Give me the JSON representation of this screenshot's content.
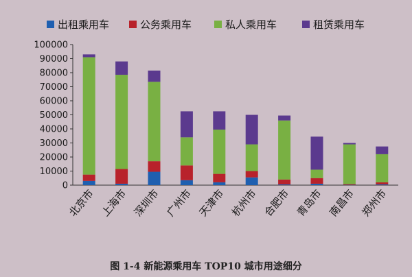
{
  "chart_data": {
    "type": "bar",
    "stacked": true,
    "caption": "图 1-4  新能源乘用车 TOP10 城市用途细分",
    "categories": [
      "北京市",
      "上海市",
      "深圳市",
      "广州市",
      "天津市",
      "杭州市",
      "合肥市",
      "青岛市",
      "南昌市",
      "郑州市"
    ],
    "series": [
      {
        "name": "出租乘用车",
        "color": "#1f5fb0",
        "values": [
          3000,
          1000,
          9500,
          3500,
          2000,
          5500,
          500,
          1000,
          200,
          500
        ]
      },
      {
        "name": "公务乘用车",
        "color": "#b8222b",
        "values": [
          4500,
          10500,
          7500,
          10500,
          6000,
          4500,
          3500,
          4000,
          500,
          1500
        ]
      },
      {
        "name": "私人乘用车",
        "color": "#79b043",
        "values": [
          83500,
          67000,
          56500,
          20000,
          31500,
          19000,
          42000,
          6000,
          28300,
          20000
        ]
      },
      {
        "name": "租赁乘用车",
        "color": "#5b3a8e",
        "values": [
          2000,
          9500,
          8000,
          18500,
          13000,
          21000,
          3500,
          23500,
          1000,
          5500
        ]
      }
    ],
    "ylim": [
      0,
      100000
    ],
    "yticks": [
      0,
      10000,
      20000,
      30000,
      40000,
      50000,
      60000,
      70000,
      80000,
      90000,
      100000
    ],
    "legend_position": "top",
    "grid": false
  }
}
